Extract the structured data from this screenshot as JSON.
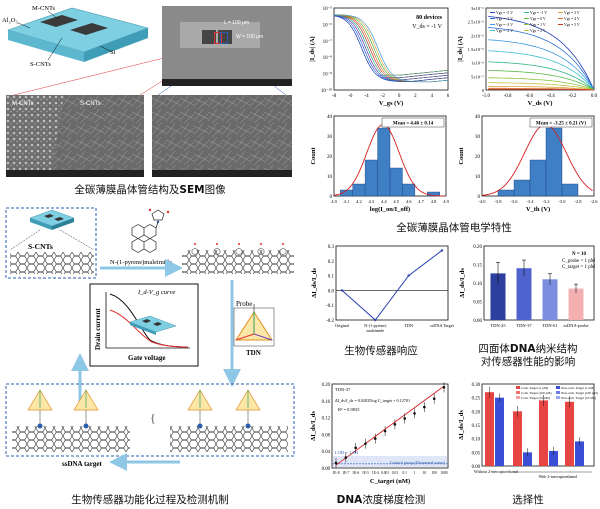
{
  "captions": {
    "structure": "全碳薄膜晶体管结构及",
    "structure_bold": "SEM",
    "structure_tail": "图像",
    "electrical": "全碳薄膜晶体管电学特性",
    "functionalization": "生物传感器功能化过程及检测机制",
    "response": "生物传感器响应",
    "tdn_line1_a": "四面体",
    "tdn_line1_b": "DNA",
    "tdn_line1_c": "纳米结构",
    "tdn_line2": "对传感器性能的影响",
    "gradient_a": "DNA",
    "gradient_b": "浓度梯度检测",
    "selectivity": "选择性"
  },
  "device": {
    "label_mcnts": "M-CNTs",
    "label_al2o3": "Al₂O₃",
    "label_scnts": "S-CNTs",
    "label_si": "Si"
  },
  "sem": {
    "label_l": "L = 100 μm",
    "label_w": "W = 100 μm",
    "label_mcnts": "M-CNTs",
    "label_scnts": "S-CNTs"
  },
  "functionalization": {
    "label_scnts": "S-CNTs",
    "label_reagent": "N-(1-pyrene)maleimide",
    "label_probe": "Probe",
    "label_tdn": "TDN",
    "label_target": "ssDNA target",
    "curve_title": "I_d-V_g curve",
    "curve_xlabel": "Gate voltage",
    "curve_ylabel": "Drain current"
  },
  "chart_data": [
    {
      "id": "transfer",
      "type": "line",
      "annotation": "80 devices",
      "annotation2": "V_ds = -1 V",
      "xlabel": "V_gs (V)",
      "ylabel": "|I_ds| (A)",
      "ylog": true,
      "xlim": [
        -8,
        6
      ],
      "ylim_exp": [
        -10,
        -5
      ],
      "xticks": [
        -8,
        -6,
        -4,
        -2,
        0,
        2,
        4,
        6
      ],
      "yticks": [
        "10⁻⁵",
        "10⁻⁶",
        "10⁻⁷",
        "10⁻⁸",
        "10⁻⁹",
        "10⁻¹⁰"
      ]
    },
    {
      "id": "output",
      "type": "line",
      "xlabel": "V_ds (V)",
      "ylabel": "|I_ds| (A)",
      "xlim": [
        -1.0,
        0.0
      ],
      "xticks": [
        -1.0,
        -0.8,
        -0.6,
        -0.4,
        -0.2,
        0.0
      ],
      "yticks": [
        "0",
        "5x10⁻⁷",
        "1x10⁻⁶",
        "1.5x10⁻⁶",
        "2x10⁻⁶",
        "2.5x10⁻⁶",
        "3x10⁻⁶"
      ],
      "legend": [
        "Vgs = -5 V",
        "Vgs = -4 V",
        "Vgs = -3 V",
        "Vgs = -2 V",
        "Vgs = -1 V",
        "Vgs = 0 V",
        "Vgs = 1 V",
        "Vgs = 2 V",
        "Vgs = 3 V",
        "Vgs = 4 V",
        "Vgs = 5 V"
      ],
      "colors": [
        "#1f3fb8",
        "#2b6fd6",
        "#3c9ae0",
        "#3fbfd0",
        "#2fb38a",
        "#58b847",
        "#8ec340",
        "#c9c13a",
        "#e0a23a",
        "#d86a2c",
        "#c03a22"
      ]
    },
    {
      "id": "on-off-hist",
      "type": "bar",
      "annotation": "Mean = 4.46 ± 0.14",
      "xlabel": "log(I_on/I_off)",
      "ylabel": "Count",
      "categories": [
        4.1,
        4.2,
        4.3,
        4.4,
        4.5,
        4.6,
        4.7,
        4.8
      ],
      "values": [
        3,
        6,
        18,
        34,
        14,
        6,
        0,
        2
      ],
      "ylim": [
        0,
        40
      ],
      "xticks": [
        4.0,
        4.1,
        4.2,
        4.3,
        4.4,
        4.5,
        4.6,
        4.7,
        4.8,
        4.9
      ],
      "yticks": [
        0,
        10,
        20,
        30,
        40
      ]
    },
    {
      "id": "vth-hist",
      "type": "bar",
      "annotation": "Mean = -3.25 ± 0.21 (V)",
      "xlabel": "V_th (V)",
      "ylabel": "Count",
      "categories": [
        -3.7,
        -3.5,
        -3.3,
        -3.1,
        -2.9
      ],
      "values": [
        3,
        8,
        18,
        34,
        6
      ],
      "ylim": [
        0,
        40
      ],
      "xticks": [
        -4.0,
        -3.8,
        -3.6,
        -3.4,
        -3.2,
        -3.0,
        -2.8,
        -2.6
      ],
      "yticks": [
        0,
        10,
        20,
        30,
        40
      ]
    },
    {
      "id": "response",
      "type": "line",
      "xlabel": "",
      "ylabel": "ΔI_ds/I_ds",
      "categories": [
        "Original",
        "N-(1-pyrene) maleimide",
        "TDN",
        "ssDNA Target"
      ],
      "values": [
        0.0,
        -0.2,
        0.1,
        0.27
      ],
      "ylim": [
        -0.2,
        0.3
      ],
      "yticks": [
        0.3,
        0.2,
        0.1,
        0.0,
        -0.1,
        -0.2
      ]
    },
    {
      "id": "tdn-bars",
      "type": "bar",
      "annotation": "N = 10",
      "annotation2": "C_probe = 1 pM",
      "annotation3": "C_target = 1 pM",
      "ylabel": "ΔI_ds/I_ds",
      "categories": [
        "TDN-25",
        "TDN-37",
        "TDN-61",
        "ssDNA-probe"
      ],
      "values": [
        0.126,
        0.14,
        0.11,
        0.085
      ],
      "errors": [
        0.03,
        0.022,
        0.015,
        0.012
      ],
      "colors": [
        "#2c3e9e",
        "#4f63cf",
        "#7c8ee0",
        "#f2b0b0"
      ],
      "ylim": [
        0,
        0.2
      ],
      "yticks": [
        0.2,
        0.15,
        0.1,
        0.05,
        0.0
      ]
    },
    {
      "id": "gradient",
      "type": "scatter",
      "annotation": "ΔI_ds/I_ds = 0.02035log C_target + 0.12701",
      "annotation2": "R² = 0.9835",
      "annotation3": "LOD = 1 fM",
      "annotation4": "Control group (Deionized water)",
      "annotation5": "TDN-37",
      "xlabel": "C_target (nM)",
      "ylabel": "ΔI_ds/I_ds",
      "x_exp": [
        -8,
        -7,
        -6,
        -5,
        -4,
        -3,
        -2,
        -1,
        0,
        1,
        2,
        3
      ],
      "xticks": [
        "1E-8",
        "1E-7",
        "1E-6",
        "1E-5",
        "1E-4",
        "0.001",
        "0.01",
        "0.1",
        "1",
        "10",
        "100",
        "1000"
      ],
      "values": [
        0.012,
        0.025,
        0.048,
        0.058,
        0.07,
        0.088,
        0.104,
        0.118,
        0.13,
        0.145,
        0.165,
        0.192
      ],
      "ylim": [
        0,
        0.2
      ],
      "yticks": [
        0.2,
        0.16,
        0.12,
        0.08,
        0.04,
        0.0
      ]
    },
    {
      "id": "selectivity",
      "type": "bar",
      "xlabel_groups": [
        "Without 2-mercaptoethanol",
        "With 2-mercaptoethanol"
      ],
      "ylabel": "ΔI_ds/I_ds",
      "legend": [
        "Com. Target (1 pM)",
        "Com. Target (100 pM)",
        "Com. Target (10 nM)",
        "Non-com. Target (1 pM)",
        "Non-com. Target (100 pM)",
        "Non-com. Target (10 nM)"
      ],
      "values_red": [
        0.27,
        0.2,
        0.24,
        0.235
      ],
      "values_blue": [
        0.25,
        0.05,
        0.055,
        0.09
      ],
      "ylim": [
        0,
        0.3
      ],
      "yticks": [
        0.3,
        0.25,
        0.2,
        0.15,
        0.1,
        0.05,
        0.0
      ]
    }
  ]
}
